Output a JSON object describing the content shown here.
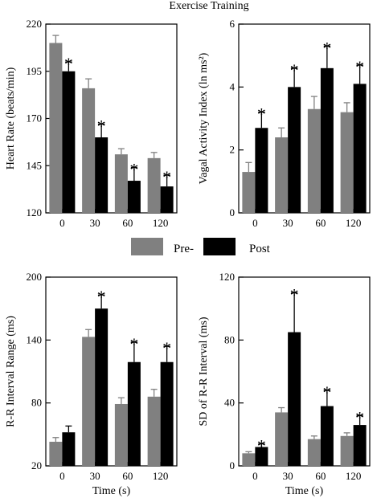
{
  "figure": {
    "title": "Exercise Training",
    "legend": [
      "Pre-",
      "Post"
    ],
    "colors": {
      "pre": "#808080",
      "post": "#000000",
      "axis": "#000000",
      "star": "#000000"
    }
  },
  "chart_data": [
    {
      "type": "bar",
      "categories": [
        "0",
        "30",
        "60",
        "120"
      ],
      "xlabel": "",
      "ylabel": "Heart Rate (beats/min)",
      "ylim": [
        120,
        220
      ],
      "yticks": [
        "120",
        "145",
        "170",
        "195",
        "220"
      ],
      "series": [
        {
          "name": "Pre-",
          "values": [
            210,
            186,
            151,
            149
          ],
          "errors": [
            4,
            5,
            3,
            3
          ]
        },
        {
          "name": "Post",
          "values": [
            195,
            160,
            137,
            134
          ],
          "errors": [
            5,
            7,
            7,
            6
          ]
        }
      ],
      "significance": [
        "*",
        "*",
        "*",
        "*"
      ]
    },
    {
      "type": "bar",
      "categories": [
        "0",
        "30",
        "60",
        "120"
      ],
      "xlabel": "",
      "ylabel": "Vagal Activity Index (ln ms²)",
      "ylim": [
        0,
        6
      ],
      "yticks": [
        "0",
        "2",
        "4",
        "6"
      ],
      "series": [
        {
          "name": "Pre-",
          "values": [
            1.3,
            2.4,
            3.3,
            3.2
          ],
          "errors": [
            0.3,
            0.3,
            0.4,
            0.3
          ]
        },
        {
          "name": "Post",
          "values": [
            2.7,
            4.0,
            4.6,
            4.1
          ],
          "errors": [
            0.5,
            0.6,
            0.7,
            0.6
          ]
        }
      ],
      "significance": [
        "*",
        "*",
        "*",
        "*"
      ]
    },
    {
      "type": "bar",
      "categories": [
        "0",
        "30",
        "60",
        "120"
      ],
      "xlabel": "Time (s)",
      "ylabel": "R-R Interval Range (ms)",
      "ylim": [
        20,
        200
      ],
      "yticks": [
        "20",
        "80",
        "140",
        "200"
      ],
      "series": [
        {
          "name": "Pre-",
          "values": [
            43,
            143,
            79,
            86
          ],
          "errors": [
            4,
            7,
            6,
            7
          ]
        },
        {
          "name": "Post",
          "values": [
            52,
            170,
            119,
            119
          ],
          "errors": [
            6,
            13,
            19,
            15
          ]
        }
      ],
      "significance": [
        "",
        "*",
        "*",
        "*"
      ]
    },
    {
      "type": "bar",
      "categories": [
        "0",
        "30",
        "60",
        "120"
      ],
      "xlabel": "Time (s)",
      "ylabel": "SD of R-R Interval (ms)",
      "ylim": [
        0,
        120
      ],
      "yticks": [
        "0",
        "40",
        "80",
        "120"
      ],
      "series": [
        {
          "name": "Pre-",
          "values": [
            8,
            34,
            17,
            19
          ],
          "errors": [
            1,
            3,
            2,
            2
          ]
        },
        {
          "name": "Post",
          "values": [
            12,
            85,
            38,
            26
          ],
          "errors": [
            2,
            25,
            10,
            6
          ]
        }
      ],
      "significance": [
        "*",
        "*",
        "*",
        "*"
      ]
    }
  ]
}
